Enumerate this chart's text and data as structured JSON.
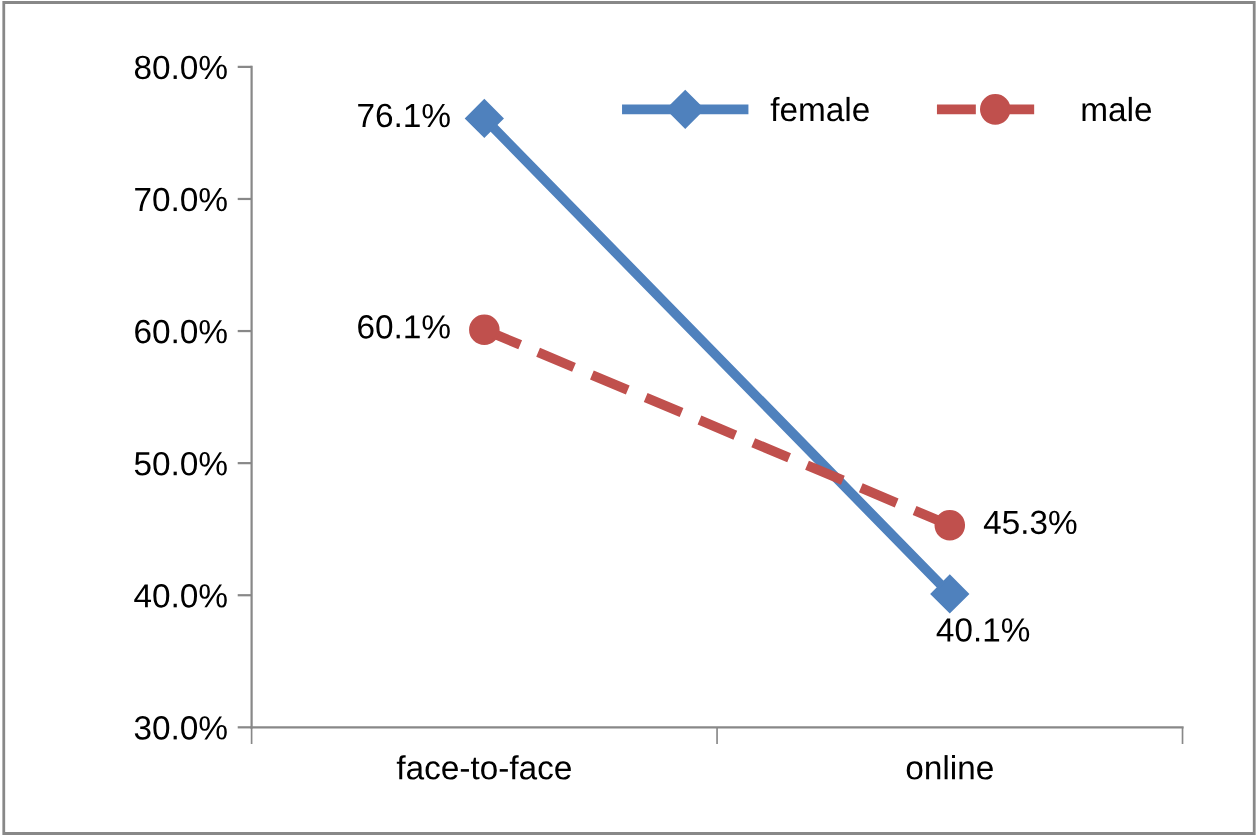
{
  "chart_data": {
    "type": "line",
    "categories": [
      "face-to-face",
      "online"
    ],
    "ylim": [
      30,
      80
    ],
    "yticks": [
      {
        "value": 30,
        "label": "30.0%"
      },
      {
        "value": 40,
        "label": "40.0%"
      },
      {
        "value": 50,
        "label": "50.0%"
      },
      {
        "value": 60,
        "label": "60.0%"
      },
      {
        "value": 70,
        "label": "70.0%"
      },
      {
        "value": 80,
        "label": "80.0%"
      }
    ],
    "grid": false,
    "legend": "top right",
    "series": [
      {
        "name": "female",
        "color": "#4f81bd",
        "values": [
          76.1,
          40.1
        ],
        "marker": "diamond",
        "line_style": "solid",
        "value_labels": [
          "76.1%",
          "40.1%"
        ]
      },
      {
        "name": "male",
        "color": "#c0504d",
        "values": [
          60.1,
          45.3
        ],
        "marker": "circle",
        "line_style": "dashed",
        "value_labels": [
          "60.1%",
          "45.3%"
        ]
      }
    ]
  }
}
